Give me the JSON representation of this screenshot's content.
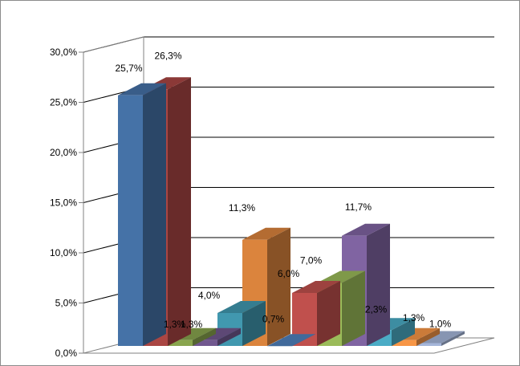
{
  "chart_data": {
    "type": "bar",
    "style": "3d-clustered-column",
    "title": "",
    "xlabel": "",
    "ylabel": "",
    "ylim": [
      0,
      30
    ],
    "yticks": [
      "0,0%",
      "5,0%",
      "10,0%",
      "15,0%",
      "20,0%",
      "25,0%",
      "30,0%"
    ],
    "grid": true,
    "legend": "none",
    "series": [
      {
        "value": 25.7,
        "label": "25,7%",
        "color": "#4572a7"
      },
      {
        "value": 26.3,
        "label": "26,3%",
        "color": "#aa4643"
      },
      {
        "value": 1.3,
        "label": "1,3%",
        "color": "#89a54e"
      },
      {
        "value": 1.3,
        "label": "1,3%",
        "color": "#71588f"
      },
      {
        "value": 4.0,
        "label": "4,0%",
        "color": "#4198af"
      },
      {
        "value": 11.3,
        "label": "11,3%",
        "color": "#db843d"
      },
      {
        "value": 0.7,
        "label": "0,7%",
        "color": "#4f81bd"
      },
      {
        "value": 6.0,
        "label": "6,0%",
        "color": "#c0504d"
      },
      {
        "value": 7.0,
        "label": "7,0%",
        "color": "#9bbb59"
      },
      {
        "value": 11.7,
        "label": "11,7%",
        "color": "#8064a2"
      },
      {
        "value": 2.3,
        "label": "2,3%",
        "color": "#4bacc6"
      },
      {
        "value": 1.3,
        "label": "1,3%",
        "color": "#f79646"
      },
      {
        "value": 1.0,
        "label": "1,0%",
        "color": "#a5b6d9"
      }
    ]
  }
}
